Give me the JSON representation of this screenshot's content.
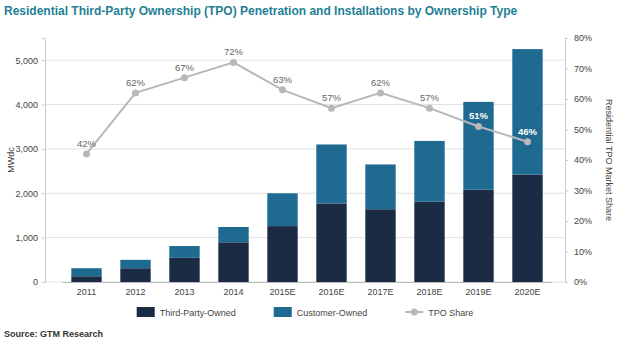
{
  "chart_data": {
    "type": "bar",
    "title": "Residential Third-Party Ownership (TPO) Penetration and Installations by Ownership Type",
    "ylabel": "MWdc",
    "y2label": "Residential TPO Market Share",
    "source": "Source: GTM Research",
    "stacked": true,
    "grid": true,
    "legend": "bottom",
    "categories": [
      "2011",
      "2012",
      "2013",
      "2014",
      "2015E",
      "2016E",
      "2017E",
      "2018E",
      "2019E",
      "2020E"
    ],
    "ylim": [
      0,
      5500
    ],
    "yticks": [
      0,
      {
        "value": 1000,
        "label": "1,000"
      },
      {
        "value": 2000,
        "label": "2,000"
      },
      {
        "value": 3000,
        "label": "3,000"
      },
      {
        "value": 4000,
        "label": "4,000"
      },
      {
        "value": 5000,
        "label": "5,000"
      }
    ],
    "y2lim": [
      0,
      80
    ],
    "y2ticks": [
      {
        "value": 0,
        "label": "0%"
      },
      {
        "value": 10,
        "label": "10%"
      },
      {
        "value": 20,
        "label": "20%"
      },
      {
        "value": 30,
        "label": "30%"
      },
      {
        "value": 40,
        "label": "40%"
      },
      {
        "value": 50,
        "label": "50%"
      },
      {
        "value": 60,
        "label": "60%"
      },
      {
        "value": 70,
        "label": "70%"
      },
      {
        "value": 80,
        "label": "80%"
      }
    ],
    "series": [
      {
        "name": "Third-Party-Owned",
        "type": "bar",
        "color": "#1b2b44",
        "values": [
          130,
          310,
          545,
          895,
          1260,
          1770,
          1640,
          1810,
          2080,
          2420
        ]
      },
      {
        "name": "Customer-Owned",
        "type": "bar",
        "color": "#1f6a90",
        "values": [
          180,
          190,
          265,
          345,
          740,
          1330,
          1010,
          1370,
          1980,
          2830
        ]
      },
      {
        "name": "TPO Share",
        "type": "line",
        "axis": "y2",
        "color": "#b8b8b8",
        "marker": "circle",
        "data_labels": true,
        "values": [
          42,
          62,
          67,
          72,
          63,
          57,
          62,
          57,
          51,
          46
        ],
        "value_labels": [
          "42%",
          "62%",
          "67%",
          "72%",
          "63%",
          "57%",
          "62%",
          "57%",
          "51%",
          "46%"
        ]
      }
    ]
  }
}
